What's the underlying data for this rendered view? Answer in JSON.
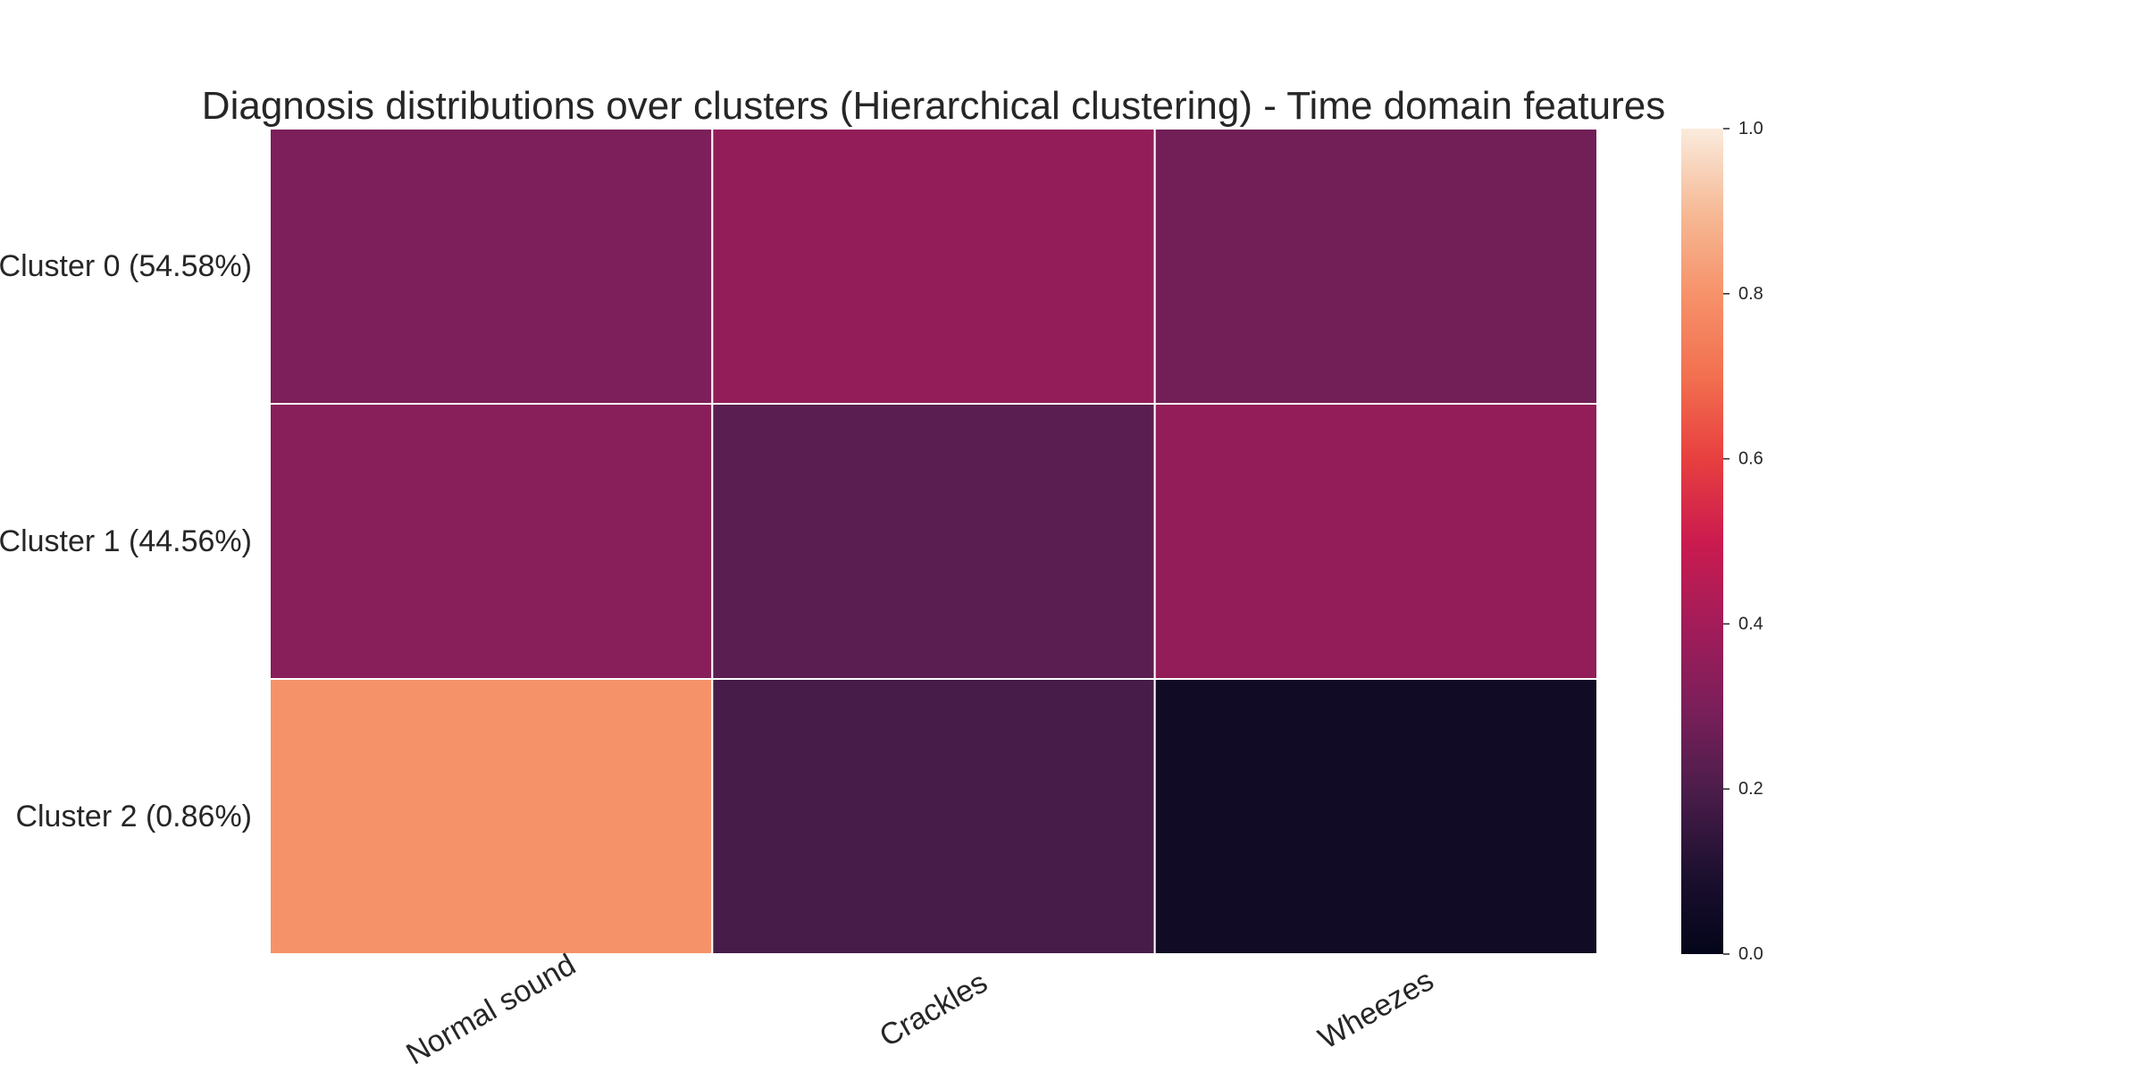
{
  "chart_data": {
    "type": "heatmap",
    "title": "Diagnosis distributions over clusters (Hierarchical clustering) - Time domain features",
    "xlabel": "",
    "ylabel": "",
    "x_categories": [
      "Normal sound",
      "Crackles",
      "Wheezes"
    ],
    "y_categories": [
      "Cluster 0 (54.58%)",
      "Cluster 1 (44.56%)",
      "Cluster 2 (0.86%)"
    ],
    "values": [
      [
        0.3,
        0.36,
        0.28
      ],
      [
        0.33,
        0.23,
        0.36
      ],
      [
        0.8,
        0.19,
        0.05
      ]
    ],
    "colormap": "rocket",
    "vmin": 0,
    "vmax": 1,
    "colorbar_ticks": [
      "0.0",
      "0.2",
      "0.4",
      "0.6",
      "0.8",
      "1.0"
    ],
    "colorbar_tick_values": [
      0,
      0.2,
      0.4,
      0.6,
      0.8,
      1.0
    ],
    "cell_border_color": "#ffffff",
    "grid": false,
    "legend": "colorbar-right"
  }
}
